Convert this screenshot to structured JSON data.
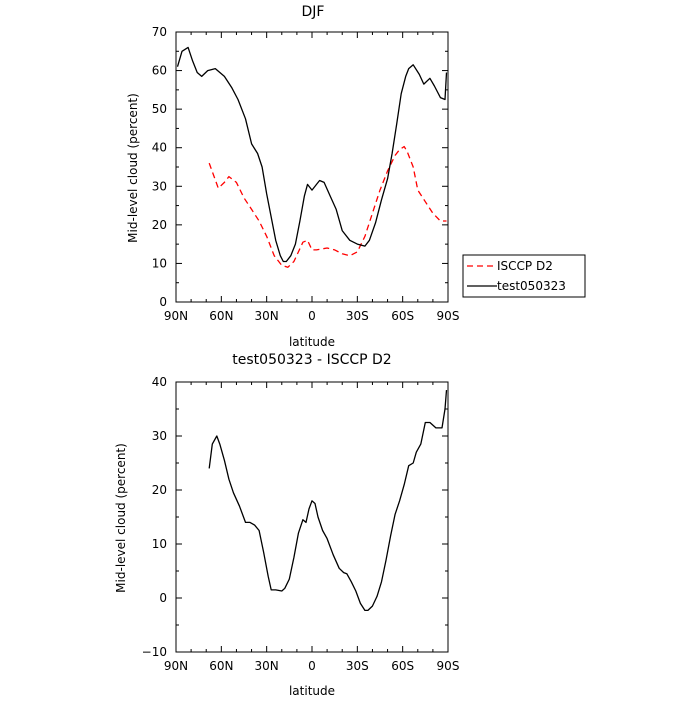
{
  "chart_data": [
    {
      "type": "line",
      "title": "DJF",
      "xlabel": "latitude",
      "ylabel": "Mid-level cloud (percent)",
      "xlim": [
        90,
        -90
      ],
      "ylim": [
        0,
        70
      ],
      "x_tick_labels": [
        "90N",
        "60N",
        "30N",
        "0",
        "30S",
        "60S",
        "90S"
      ],
      "y_tick_labels": [
        "0",
        "10",
        "20",
        "30",
        "40",
        "50",
        "60",
        "70"
      ],
      "legend_position": "right",
      "series": [
        {
          "name": "ISCCP D2",
          "color": "#ff0000",
          "style": "dashed",
          "x": [
            68,
            62,
            58,
            55,
            50,
            45,
            40,
            35,
            30,
            25,
            20,
            16,
            12,
            9,
            6,
            3,
            0,
            -3,
            -10,
            -15,
            -20,
            -25,
            -30,
            -35,
            -40,
            -45,
            -50,
            -55,
            -58,
            -61,
            -63,
            -67,
            -70,
            -75,
            -80,
            -85,
            -89
          ],
          "y": [
            36,
            29.5,
            31,
            32.5,
            31,
            27,
            24,
            21,
            17,
            12,
            9.5,
            9,
            10.5,
            13,
            15.5,
            16,
            13.5,
            13.5,
            14,
            13.5,
            12.5,
            12,
            13,
            17,
            23,
            29,
            34,
            38,
            39.5,
            40.3,
            39,
            35,
            29,
            26,
            23,
            21,
            21
          ]
        },
        {
          "name": "test050323",
          "color": "#000000",
          "style": "solid",
          "x": [
            89,
            86,
            82,
            79,
            76,
            73,
            69,
            64,
            58,
            53,
            49,
            44,
            40,
            36,
            33,
            30,
            27,
            24,
            21,
            19,
            17,
            14,
            11,
            8,
            5,
            3,
            0,
            -3,
            -5,
            -8,
            -12,
            -16,
            -20,
            -25,
            -30,
            -35,
            -38,
            -42,
            -46,
            -50,
            -53,
            -56,
            -59,
            -62,
            -64,
            -67,
            -71,
            -74,
            -78,
            -81,
            -85,
            -88,
            -89
          ],
          "y": [
            61,
            65,
            66,
            62.5,
            59.5,
            58.5,
            60,
            60.5,
            58.5,
            55.5,
            52.5,
            47.5,
            41,
            38.5,
            35,
            28,
            22,
            16,
            12,
            10.5,
            10.5,
            12,
            15,
            21,
            27.5,
            30.5,
            29,
            30.5,
            31.5,
            31,
            27.5,
            24,
            18.5,
            16,
            15,
            14.5,
            16,
            20.5,
            26.5,
            32,
            38.5,
            46,
            54,
            58.5,
            60.5,
            61.5,
            59,
            56.5,
            58,
            56,
            53,
            52.5,
            59.5
          ]
        }
      ]
    },
    {
      "type": "line",
      "title": "test050323 - ISCCP D2",
      "xlabel": "latitude",
      "ylabel": "Mid-level cloud (percent)",
      "xlim": [
        90,
        -90
      ],
      "ylim": [
        -10,
        40
      ],
      "x_tick_labels": [
        "90N",
        "60N",
        "30N",
        "0",
        "30S",
        "60S",
        "90S"
      ],
      "y_tick_labels": [
        "−10",
        "0",
        "10",
        "20",
        "30",
        "40"
      ],
      "series": [
        {
          "name": "test050323 - ISCCP D2",
          "color": "#000000",
          "style": "solid",
          "x": [
            68,
            66,
            63,
            61,
            58,
            55,
            52,
            48,
            44,
            41,
            38,
            35,
            32,
            29,
            27,
            24,
            20,
            18,
            15,
            12,
            9,
            6,
            4,
            2,
            0,
            -2,
            -4,
            -7,
            -10,
            -14,
            -18,
            -21,
            -23,
            -26,
            -29,
            -32,
            -35,
            -37,
            -40,
            -43,
            -46,
            -49,
            -52,
            -55,
            -58,
            -61,
            -64,
            -67,
            -69,
            -72,
            -75,
            -78,
            -82,
            -84,
            -86,
            -88,
            -89
          ],
          "y": [
            24,
            28.5,
            30,
            28.5,
            25.5,
            22,
            19.5,
            17,
            14,
            14,
            13.5,
            12.5,
            8.5,
            4,
            1.5,
            1.5,
            1.3,
            1.8,
            3.5,
            7.5,
            12,
            14.5,
            14,
            16.5,
            18,
            17.5,
            15,
            12.5,
            11,
            8,
            5.5,
            4.7,
            4.5,
            3,
            1.3,
            -1,
            -2.3,
            -2.3,
            -1.5,
            0.3,
            3,
            7,
            11.5,
            15.5,
            18,
            21,
            24.5,
            25,
            27,
            28.5,
            32.5,
            32.5,
            31.5,
            31.5,
            31.5,
            35,
            38.5
          ]
        }
      ]
    }
  ]
}
